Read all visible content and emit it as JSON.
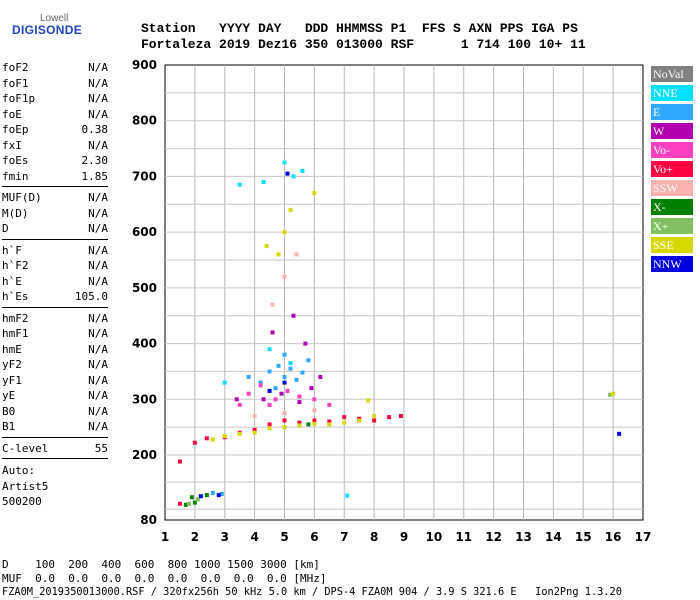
{
  "logo": {
    "line1": "Lowell",
    "line2": "DIGISONDE"
  },
  "header": {
    "labels": "Station   YYYY DAY   DDD HHMMSS P1  FFS S AXN PPS IGA PS",
    "values": "Fortaleza 2019 Dez16 350 013000 RSF      1 714 100 10+ 11"
  },
  "params": {
    "group1": [
      {
        "k": "foF2",
        "v": "N/A"
      },
      {
        "k": "foF1",
        "v": "N/A"
      },
      {
        "k": "foF1p",
        "v": "N/A"
      },
      {
        "k": "foE",
        "v": "N/A"
      },
      {
        "k": "foEp",
        "v": "0.38"
      },
      {
        "k": "fxI",
        "v": "N/A"
      },
      {
        "k": "foEs",
        "v": "2.30"
      },
      {
        "k": "fmin",
        "v": "1.85"
      }
    ],
    "group2": [
      {
        "k": "MUF(D)",
        "v": "N/A"
      },
      {
        "k": "M(D)",
        "v": "N/A"
      },
      {
        "k": "D",
        "v": "N/A"
      }
    ],
    "group3": [
      {
        "k": "h`F",
        "v": "N/A"
      },
      {
        "k": "h`F2",
        "v": "N/A"
      },
      {
        "k": "h`E",
        "v": "N/A"
      },
      {
        "k": "h`Es",
        "v": "105.0"
      }
    ],
    "group4": [
      {
        "k": "hmF2",
        "v": "N/A"
      },
      {
        "k": "hmF1",
        "v": "N/A"
      },
      {
        "k": "hmE",
        "v": "N/A"
      },
      {
        "k": "yF2",
        "v": "N/A"
      },
      {
        "k": "yF1",
        "v": "N/A"
      },
      {
        "k": "yE",
        "v": "N/A"
      },
      {
        "k": "B0",
        "v": "N/A"
      },
      {
        "k": "B1",
        "v": "N/A"
      }
    ],
    "clevel": {
      "k": "C-level",
      "v": "55"
    },
    "auto": [
      "Auto:",
      "Artist5",
      "500200"
    ]
  },
  "legend": [
    {
      "name": "NoVal",
      "color": "#808080"
    },
    {
      "name": "NNE",
      "color": "#00e0ff"
    },
    {
      "name": "E",
      "color": "#30a8ff"
    },
    {
      "name": "W",
      "color": "#b000b0"
    },
    {
      "name": "Vo-",
      "color": "#ff40c0"
    },
    {
      "name": "Vo+",
      "color": "#ff0040"
    },
    {
      "name": "SSW",
      "color": "#ffb0b0"
    },
    {
      "name": "X-",
      "color": "#008000"
    },
    {
      "name": "X+",
      "color": "#80c060"
    },
    {
      "name": "SSE",
      "color": "#d8d800"
    },
    {
      "name": "NNW",
      "color": "#0000e0"
    }
  ],
  "bottom": {
    "d_line": "D    100  200  400  600  800 1000 1500 3000 [km]",
    "muf_line": "MUF  0.0  0.0  0.0  0.0  0.0  0.0  0.0  0.0 [MHz]",
    "footer": "FZA0M_2019350013000.RSF / 320fx256h 50 kHz 5.0 km / DPS-4 FZA0M 904 / 3.9 S 321.6 E   Ion2Png 1.3.20"
  },
  "chart_data": {
    "type": "scatter",
    "x_ticks": [
      1,
      2,
      3,
      4,
      5,
      6,
      7,
      8,
      9,
      10,
      11,
      12,
      13,
      14,
      15,
      16,
      17
    ],
    "y_ticks": [
      80,
      200,
      300,
      400,
      500,
      600,
      700,
      800,
      900
    ],
    "xlim": [
      1,
      17
    ],
    "ylim": [
      80,
      900
    ],
    "grid": true,
    "legend_position": "right",
    "series": [
      {
        "name": "NNE",
        "color": "#00e0ff",
        "points": [
          [
            5.0,
            725
          ],
          [
            5.3,
            700
          ],
          [
            5.6,
            710
          ],
          [
            4.3,
            690
          ],
          [
            3.5,
            685
          ],
          [
            3.0,
            330
          ],
          [
            4.5,
            390
          ],
          [
            5.2,
            365
          ],
          [
            7.1,
            125
          ]
        ]
      },
      {
        "name": "E",
        "color": "#30a8ff",
        "points": [
          [
            4.5,
            350
          ],
          [
            4.8,
            360
          ],
          [
            5.0,
            340
          ],
          [
            5.2,
            355
          ],
          [
            5.4,
            335
          ],
          [
            5.6,
            348
          ],
          [
            4.2,
            330
          ],
          [
            5.8,
            370
          ],
          [
            3.8,
            340
          ],
          [
            5.0,
            380
          ],
          [
            4.7,
            320
          ],
          [
            2.6,
            130
          ],
          [
            2.9,
            128
          ]
        ]
      },
      {
        "name": "W",
        "color": "#b000b0",
        "points": [
          [
            4.3,
            300
          ],
          [
            4.9,
            310
          ],
          [
            5.5,
            295
          ],
          [
            5.9,
            320
          ],
          [
            4.6,
            420
          ],
          [
            5.3,
            450
          ],
          [
            3.4,
            300
          ],
          [
            6.2,
            340
          ],
          [
            5.7,
            400
          ]
        ]
      },
      {
        "name": "Vo-",
        "color": "#ff40c0",
        "points": [
          [
            3.8,
            310
          ],
          [
            4.2,
            325
          ],
          [
            4.7,
            300
          ],
          [
            5.1,
            315
          ],
          [
            5.5,
            305
          ],
          [
            6.0,
            300
          ],
          [
            4.5,
            290
          ],
          [
            3.5,
            290
          ],
          [
            6.5,
            290
          ]
        ]
      },
      {
        "name": "Vo+",
        "color": "#ff0040",
        "points": [
          [
            2.0,
            222
          ],
          [
            2.4,
            230
          ],
          [
            3.0,
            232
          ],
          [
            3.5,
            240
          ],
          [
            4.0,
            245
          ],
          [
            4.5,
            255
          ],
          [
            5.0,
            262
          ],
          [
            5.5,
            258
          ],
          [
            6.0,
            262
          ],
          [
            6.5,
            260
          ],
          [
            7.0,
            268
          ],
          [
            7.5,
            265
          ],
          [
            8.0,
            262
          ],
          [
            8.5,
            268
          ],
          [
            8.9,
            270
          ],
          [
            1.5,
            188
          ],
          [
            1.5,
            110
          ]
        ]
      },
      {
        "name": "SSW",
        "color": "#ffb0b0",
        "points": [
          [
            4.0,
            270
          ],
          [
            5.0,
            275
          ],
          [
            6.0,
            280
          ],
          [
            4.6,
            470
          ],
          [
            5.0,
            520
          ],
          [
            5.4,
            560
          ]
        ]
      },
      {
        "name": "X-",
        "color": "#008000",
        "points": [
          [
            1.7,
            108
          ],
          [
            2.0,
            112
          ],
          [
            1.9,
            122
          ],
          [
            2.4,
            126
          ],
          [
            5.8,
            255
          ]
        ]
      },
      {
        "name": "X+",
        "color": "#80c060",
        "points": [
          [
            1.8,
            110
          ],
          [
            2.1,
            118
          ],
          [
            15.9,
            308
          ]
        ]
      },
      {
        "name": "SSE",
        "color": "#d8d800",
        "points": [
          [
            2.6,
            228
          ],
          [
            3.0,
            234
          ],
          [
            3.5,
            238
          ],
          [
            4.0,
            240
          ],
          [
            4.5,
            248
          ],
          [
            5.0,
            250
          ],
          [
            5.5,
            253
          ],
          [
            6.0,
            256
          ],
          [
            6.5,
            255
          ],
          [
            7.0,
            258
          ],
          [
            7.5,
            262
          ],
          [
            8.0,
            270
          ],
          [
            7.8,
            298
          ],
          [
            4.8,
            560
          ],
          [
            5.0,
            600
          ],
          [
            5.2,
            640
          ],
          [
            6.0,
            670
          ],
          [
            4.4,
            575
          ],
          [
            16.0,
            310
          ]
        ]
      },
      {
        "name": "NNW",
        "color": "#0000e0",
        "points": [
          [
            2.2,
            124
          ],
          [
            2.8,
            126
          ],
          [
            4.5,
            315
          ],
          [
            5.0,
            330
          ],
          [
            16.2,
            238
          ],
          [
            5.1,
            705
          ]
        ]
      }
    ]
  }
}
